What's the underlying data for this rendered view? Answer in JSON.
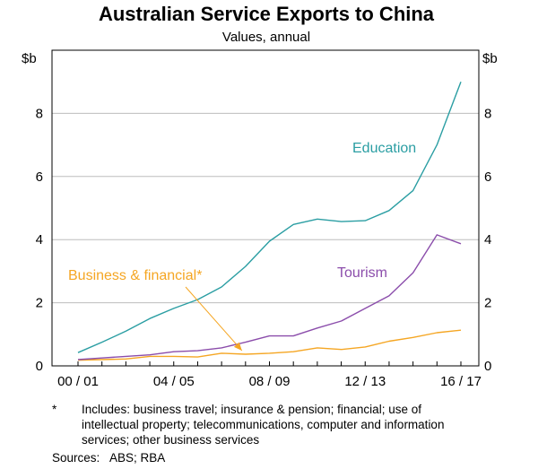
{
  "chart_data": {
    "type": "line",
    "title": "Australian Service Exports to China",
    "subtitle": "Values, annual",
    "y_unit_left": "$b",
    "y_unit_right": "$b",
    "ylim": [
      0,
      10
    ],
    "yticks": [
      0,
      2,
      4,
      6,
      8
    ],
    "x": [
      "00/01",
      "01/02",
      "02/03",
      "03/04",
      "04/05",
      "05/06",
      "06/07",
      "07/08",
      "08/09",
      "09/10",
      "10/11",
      "11/12",
      "12/13",
      "13/14",
      "14/15",
      "15/16",
      "16/17"
    ],
    "x_tick_labels": [
      {
        "x": "00/01",
        "label": "00 / 01"
      },
      {
        "x": "04/05",
        "label": "04 / 05"
      },
      {
        "x": "08/09",
        "label": "08 / 09"
      },
      {
        "x": "12/13",
        "label": "12 / 13"
      },
      {
        "x": "16/17",
        "label": "16 / 17"
      }
    ],
    "series": [
      {
        "name": "Education",
        "color": "#2b9ea3",
        "values": [
          0.42,
          0.75,
          1.1,
          1.5,
          1.82,
          2.1,
          2.5,
          3.15,
          3.95,
          4.48,
          4.65,
          4.57,
          4.6,
          4.92,
          5.55,
          7.0,
          9.0
        ]
      },
      {
        "name": "Tourism",
        "color": "#8b4dab",
        "values": [
          0.2,
          0.25,
          0.3,
          0.35,
          0.45,
          0.48,
          0.57,
          0.75,
          0.95,
          0.95,
          1.2,
          1.42,
          1.82,
          2.22,
          2.95,
          4.15,
          3.87
        ]
      },
      {
        "name": "Business & financial*",
        "color": "#f5a623",
        "values": [
          0.18,
          0.2,
          0.22,
          0.3,
          0.3,
          0.28,
          0.4,
          0.37,
          0.4,
          0.45,
          0.57,
          0.52,
          0.6,
          0.78,
          0.9,
          1.05,
          1.13
        ]
      }
    ]
  },
  "footnote": {
    "marker": "*",
    "lines": [
      "Includes: business travel; insurance & pension; financial; use of",
      "intellectual property; telecommunications, computer and information",
      "services; other business services"
    ]
  },
  "sources": {
    "label": "Sources:",
    "text": "ABS; RBA"
  }
}
